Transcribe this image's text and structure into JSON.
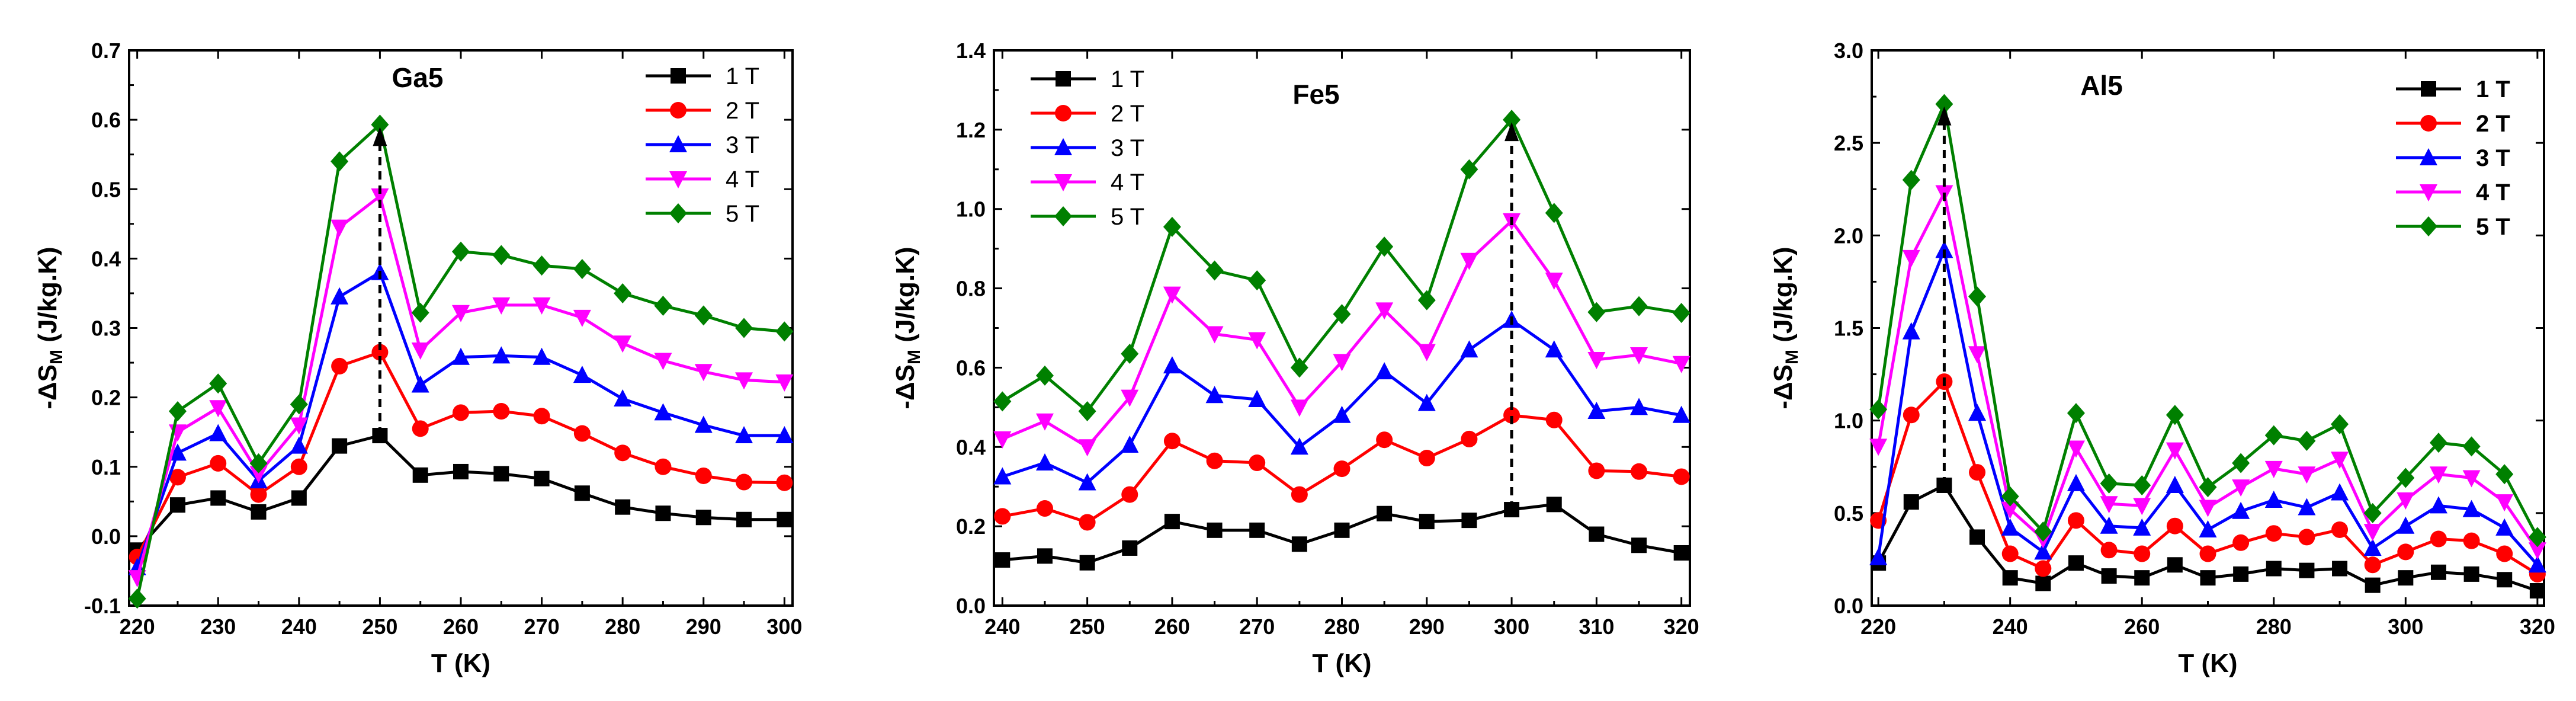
{
  "chart_data": [
    {
      "type": "line",
      "title": "Ga5",
      "xlabel": "T (K)",
      "ylabel": "-ΔS_M (J/kg.K)",
      "xlim": [
        219,
        301
      ],
      "ylim": [
        -0.1,
        0.7
      ],
      "xticks": [
        220,
        230,
        240,
        250,
        260,
        270,
        280,
        290,
        300
      ],
      "yticks": [
        -0.1,
        0.0,
        0.1,
        0.2,
        0.3,
        0.4,
        0.5,
        0.6,
        0.7
      ],
      "ytick_labels": [
        "-0.1",
        "0.0",
        "0.1",
        "0.2",
        "0.3",
        "0.4",
        "0.5",
        "0.6",
        "0.7"
      ],
      "legend_position": "top-right",
      "legend_bold": false,
      "x": [
        220,
        225,
        230,
        235,
        240,
        245,
        250,
        255,
        260,
        265,
        270,
        275,
        280,
        285,
        290,
        295,
        300
      ],
      "series": [
        {
          "name": "1 T",
          "marker": "square",
          "values": [
            -0.02,
            0.045,
            0.055,
            0.035,
            0.055,
            0.13,
            0.145,
            0.088,
            0.093,
            0.09,
            0.083,
            0.062,
            0.042,
            0.033,
            0.027,
            0.024,
            0.024
          ]
        },
        {
          "name": "2 T",
          "marker": "circle",
          "values": [
            -0.03,
            0.085,
            0.105,
            0.06,
            0.1,
            0.245,
            0.265,
            0.155,
            0.178,
            0.18,
            0.173,
            0.148,
            0.12,
            0.1,
            0.087,
            0.078,
            0.077
          ]
        },
        {
          "name": "3 T",
          "marker": "triangle-up",
          "values": [
            -0.045,
            0.12,
            0.148,
            0.08,
            0.13,
            0.345,
            0.38,
            0.218,
            0.258,
            0.26,
            0.258,
            0.232,
            0.198,
            0.178,
            0.16,
            0.145,
            0.145
          ]
        },
        {
          "name": "4 T",
          "marker": "triangle-down",
          "values": [
            -0.06,
            0.15,
            0.185,
            0.09,
            0.16,
            0.445,
            0.49,
            0.268,
            0.322,
            0.333,
            0.333,
            0.315,
            0.278,
            0.253,
            0.237,
            0.225,
            0.222
          ]
        },
        {
          "name": "5 T",
          "marker": "diamond",
          "values": [
            -0.09,
            0.18,
            0.22,
            0.105,
            0.19,
            0.54,
            0.593,
            0.322,
            0.41,
            0.405,
            0.39,
            0.385,
            0.35,
            0.332,
            0.318,
            0.3,
            0.295
          ]
        }
      ],
      "arrow": {
        "x": 250,
        "y_from": 0.145,
        "y_to": 0.593
      }
    },
    {
      "type": "line",
      "title": "Fe5",
      "xlabel": "T (K)",
      "ylabel": "-ΔS_M (J/kg.K)",
      "xlim": [
        239,
        321
      ],
      "ylim": [
        0.0,
        1.4
      ],
      "xticks": [
        240,
        250,
        260,
        270,
        280,
        290,
        300,
        310,
        320
      ],
      "yticks": [
        0.0,
        0.2,
        0.4,
        0.6,
        0.8,
        1.0,
        1.2,
        1.4
      ],
      "ytick_labels": [
        "0.0",
        "0.2",
        "0.4",
        "0.6",
        "0.8",
        "1.0",
        "1.2",
        "1.4"
      ],
      "legend_position": "top-left",
      "legend_bold": false,
      "x": [
        240,
        245,
        250,
        255,
        260,
        265,
        270,
        275,
        280,
        285,
        290,
        295,
        300,
        305,
        310,
        315,
        320
      ],
      "series": [
        {
          "name": "1 T",
          "marker": "square",
          "values": [
            0.115,
            0.125,
            0.108,
            0.145,
            0.212,
            0.19,
            0.19,
            0.155,
            0.19,
            0.232,
            0.212,
            0.215,
            0.242,
            0.255,
            0.18,
            0.152,
            0.133
          ]
        },
        {
          "name": "2 T",
          "marker": "circle",
          "values": [
            0.225,
            0.245,
            0.21,
            0.28,
            0.415,
            0.365,
            0.36,
            0.28,
            0.345,
            0.418,
            0.372,
            0.42,
            0.48,
            0.468,
            0.34,
            0.338,
            0.325
          ]
        },
        {
          "name": "3 T",
          "marker": "triangle-up",
          "values": [
            0.325,
            0.36,
            0.31,
            0.405,
            0.605,
            0.53,
            0.52,
            0.4,
            0.48,
            0.59,
            0.51,
            0.645,
            0.72,
            0.645,
            0.49,
            0.5,
            0.48
          ]
        },
        {
          "name": "4 T",
          "marker": "triangle-down",
          "values": [
            0.42,
            0.465,
            0.4,
            0.525,
            0.785,
            0.685,
            0.67,
            0.5,
            0.615,
            0.745,
            0.64,
            0.87,
            0.97,
            0.82,
            0.62,
            0.632,
            0.61
          ]
        },
        {
          "name": "5 T",
          "marker": "diamond",
          "values": [
            0.515,
            0.58,
            0.49,
            0.635,
            0.955,
            0.845,
            0.82,
            0.6,
            0.735,
            0.905,
            0.77,
            1.1,
            1.225,
            0.99,
            0.74,
            0.755,
            0.738
          ]
        }
      ],
      "arrow": {
        "x": 300,
        "y_from": 0.242,
        "y_to": 1.225
      }
    },
    {
      "type": "line",
      "title": "Al5",
      "xlabel": "T (K)",
      "ylabel": "-ΔS_M (J/kg.K)",
      "xlim": [
        219,
        321
      ],
      "ylim": [
        0.0,
        3.0
      ],
      "xticks": [
        220,
        240,
        260,
        280,
        300,
        320
      ],
      "yticks": [
        0.0,
        0.5,
        1.0,
        1.5,
        2.0,
        2.5,
        3.0
      ],
      "ytick_labels": [
        "0.0",
        "0.5",
        "1.0",
        "1.5",
        "2.0",
        "2.5",
        "3.0"
      ],
      "legend_position": "top-right",
      "legend_bold": true,
      "x": [
        220,
        225,
        230,
        235,
        240,
        245,
        250,
        255,
        260,
        265,
        270,
        275,
        280,
        285,
        290,
        295,
        300,
        305,
        310,
        315,
        320
      ],
      "series": [
        {
          "name": "1 T",
          "marker": "square",
          "values": [
            0.23,
            0.56,
            0.65,
            0.37,
            0.15,
            0.12,
            0.23,
            0.16,
            0.15,
            0.22,
            0.15,
            0.17,
            0.2,
            0.19,
            0.2,
            0.11,
            0.15,
            0.18,
            0.17,
            0.14,
            0.08
          ]
        },
        {
          "name": "2 T",
          "marker": "circle",
          "values": [
            0.46,
            1.03,
            1.21,
            0.72,
            0.28,
            0.2,
            0.46,
            0.3,
            0.28,
            0.43,
            0.28,
            0.34,
            0.39,
            0.37,
            0.41,
            0.22,
            0.29,
            0.36,
            0.35,
            0.28,
            0.17
          ]
        },
        {
          "name": "3 T",
          "marker": "triangle-up",
          "values": [
            0.26,
            1.48,
            1.92,
            1.04,
            0.42,
            0.29,
            0.66,
            0.43,
            0.42,
            0.65,
            0.41,
            0.51,
            0.57,
            0.53,
            0.61,
            0.31,
            0.43,
            0.54,
            0.52,
            0.42,
            0.22
          ]
        },
        {
          "name": "4 T",
          "marker": "triangle-down",
          "values": [
            0.86,
            1.88,
            2.23,
            1.36,
            0.52,
            0.36,
            0.85,
            0.55,
            0.54,
            0.84,
            0.53,
            0.64,
            0.74,
            0.71,
            0.79,
            0.4,
            0.57,
            0.71,
            0.69,
            0.56,
            0.3
          ]
        },
        {
          "name": "5 T",
          "marker": "diamond",
          "values": [
            1.06,
            2.3,
            2.71,
            1.67,
            0.59,
            0.4,
            1.04,
            0.66,
            0.65,
            1.03,
            0.64,
            0.77,
            0.92,
            0.89,
            0.98,
            0.5,
            0.69,
            0.88,
            0.86,
            0.71,
            0.37
          ]
        }
      ],
      "arrow": {
        "x": 230,
        "y_from": 0.65,
        "y_to": 2.71
      }
    }
  ],
  "series_colors": [
    "#000000",
    "#ff0000",
    "#0000ff",
    "#ff00ff",
    "#008000"
  ]
}
